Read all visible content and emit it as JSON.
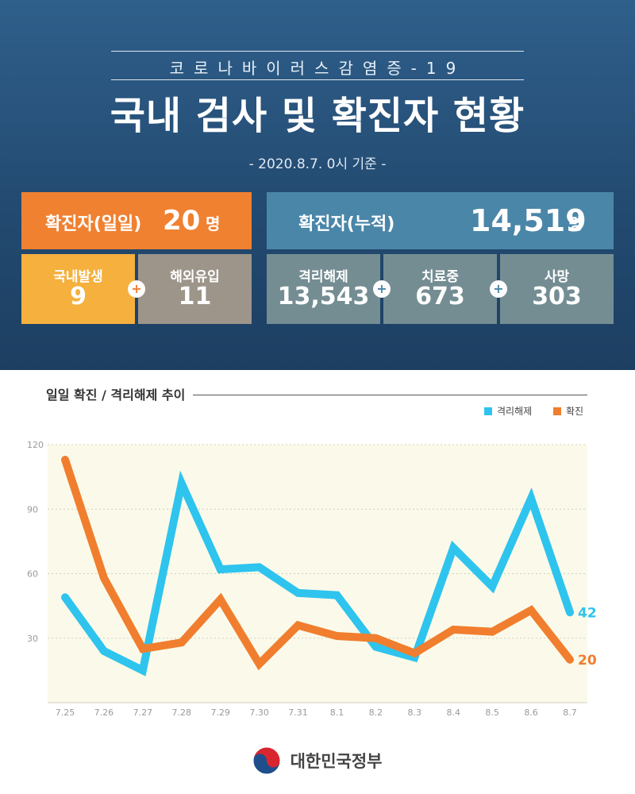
{
  "header": {
    "subtitle": "코로나바이러스감염증-19",
    "title": "국내 검사 및 확진자 현황",
    "basis": "- 2020.8.7. 0시 기준 -"
  },
  "daily": {
    "label": "확진자(일일)",
    "value": "20",
    "unit": "명"
  },
  "cumulative": {
    "label": "확진자(누적)",
    "value": "14,519",
    "unit": "명"
  },
  "breakdown_daily": [
    {
      "label": "국내발생",
      "value": "9"
    },
    {
      "label": "해외유입",
      "value": "11"
    }
  ],
  "breakdown_cumulative": [
    {
      "label": "격리해제",
      "value": "13,543"
    },
    {
      "label": "치료중",
      "value": "673"
    },
    {
      "label": "사망",
      "value": "303"
    }
  ],
  "plus_sign": "+",
  "colors": {
    "orange": "#f08131",
    "yellow": "#f5b03e",
    "taupe": "#9e958a",
    "teal": "#4a86a8",
    "slate": "#748d93",
    "released_line": "#2ec4ee",
    "confirmed_line": "#f07e2e",
    "plot_bg": "#fbfaea"
  },
  "footer": {
    "text": "대한민국정부"
  },
  "chart_data": {
    "type": "line",
    "title": "일일 확진 / 격리해제 추이",
    "categories": [
      "7.25",
      "7.26",
      "7.27",
      "7.28",
      "7.29",
      "7.30",
      "7.31",
      "8.1",
      "8.2",
      "8.3",
      "8.4",
      "8.5",
      "8.6",
      "8.7"
    ],
    "yticks": [
      "30",
      "60",
      "90",
      "120"
    ],
    "ylim": [
      0,
      120
    ],
    "grid": true,
    "legend_position": "top-right",
    "series": [
      {
        "name": "격리해제",
        "color": "#2ec4ee",
        "values": [
          49,
          24,
          15,
          102,
          62,
          63,
          51,
          50,
          26,
          21,
          72,
          54,
          95,
          42
        ],
        "end_label": "42"
      },
      {
        "name": "확진",
        "color": "#f07e2e",
        "values": [
          113,
          58,
          25,
          28,
          48,
          18,
          36,
          31,
          30,
          23,
          34,
          33,
          43,
          20
        ],
        "end_label": "20"
      }
    ]
  }
}
